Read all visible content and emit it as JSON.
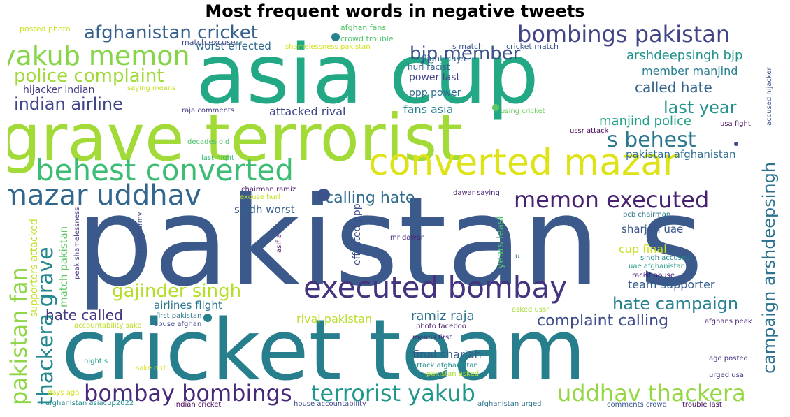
{
  "chart_data": {
    "type": "wordcloud",
    "title": "Most frequent words in negative tweets",
    "words": [
      {
        "text": "pakistan s",
        "color": "#3b5a8b"
      },
      {
        "text": "cricket team",
        "color": "#277f8e"
      },
      {
        "text": "asia cup",
        "color": "#22a884"
      },
      {
        "text": "grave terrorist",
        "color": "#a2da37"
      },
      {
        "text": "converted mazar",
        "color": "#dee318"
      },
      {
        "text": "behest converted",
        "color": "#3dbc74"
      },
      {
        "text": "executed bombay",
        "color": "#46337e"
      },
      {
        "text": "mazar uddhav",
        "color": "#31668e"
      },
      {
        "text": "yakub memon",
        "color": "#86d549"
      },
      {
        "text": "bombay bombings",
        "color": "#482878"
      },
      {
        "text": "terrorist yakub",
        "color": "#1f978b"
      },
      {
        "text": "uddhav thackera",
        "color": "#93d741"
      },
      {
        "text": "memon executed",
        "color": "#482173"
      },
      {
        "text": "bombings pakistan",
        "color": "#414487"
      },
      {
        "text": "s behest",
        "color": "#2a788e"
      },
      {
        "text": "afghanistan cricket",
        "color": "#35608d"
      },
      {
        "text": "gajinder singh",
        "color": "#b5de2b"
      },
      {
        "text": "pakistan fan",
        "color": "#8ed645"
      },
      {
        "text": "thackera grave",
        "color": "#23898e"
      },
      {
        "text": "police complaint",
        "color": "#9fda3a"
      },
      {
        "text": "bjp member",
        "color": "#3b528b"
      },
      {
        "text": "last year",
        "color": "#21918c"
      },
      {
        "text": "indian airline",
        "color": "#404688"
      },
      {
        "text": "hate campaign",
        "color": "#26818e"
      },
      {
        "text": "campaign arshdeepsingh",
        "color": "#2c728e"
      },
      {
        "text": "calling hate",
        "color": "#2f6c8e"
      },
      {
        "text": "complaint calling",
        "color": "#3e4c8a"
      },
      {
        "text": "arshdeepsingh bjp",
        "color": "#20928c"
      },
      {
        "text": "called hate",
        "color": "#33638d"
      },
      {
        "text": "manjind police",
        "color": "#1fa187"
      },
      {
        "text": "hate called",
        "color": "#443983"
      },
      {
        "text": "member manjind",
        "color": "#287d8e"
      },
      {
        "text": "ramiz raja",
        "color": "#2d708e"
      },
      {
        "text": "rival pakistan",
        "color": "#b8de29"
      },
      {
        "text": "final sharjah",
        "color": "#38598c"
      },
      {
        "text": "match pakistan",
        "color": "#5ec962"
      },
      {
        "text": "team supporter",
        "color": "#365c8d"
      },
      {
        "text": "attacked rival",
        "color": "#3f4788"
      },
      {
        "text": "fans asia",
        "color": "#26828e"
      },
      {
        "text": "cup final",
        "color": "#c8e020"
      },
      {
        "text": "pakistan afghanistan",
        "color": "#2e6e8e"
      },
      {
        "text": "airlines flight",
        "color": "#2a768e"
      },
      {
        "text": "sharjah uae",
        "color": "#39558c"
      },
      {
        "text": "worst effected",
        "color": "#306a8e"
      },
      {
        "text": "sindh worst",
        "color": "#355f8d"
      },
      {
        "text": "hijacker indian",
        "color": "#433e85"
      },
      {
        "text": "effected ppp",
        "color": "#3d4e8a"
      },
      {
        "text": "years least",
        "color": "#4ac16d"
      },
      {
        "text": "supporters attacked",
        "color": "#c0df25"
      },
      {
        "text": "power last",
        "color": "#414287"
      },
      {
        "text": "ppp power",
        "color": "#2e6f8e"
      },
      {
        "text": "flight days",
        "color": "#31678e"
      },
      {
        "text": "hurl racist",
        "color": "#34618d"
      },
      {
        "text": "s match",
        "color": "#3a548c"
      },
      {
        "text": "cricket match",
        "color": "#39568c"
      },
      {
        "text": "match excuse",
        "color": "#3e4a89"
      },
      {
        "text": "posted photo",
        "color": "#cde11d"
      },
      {
        "text": "crowd trouble",
        "color": "#50c46a"
      },
      {
        "text": "afghan fans",
        "color": "#56c667"
      },
      {
        "text": "shamelessness pakistan",
        "color": "#d5e21a"
      },
      {
        "text": "saying means",
        "color": "#c2df23"
      },
      {
        "text": "raja comments",
        "color": "#453882"
      },
      {
        "text": "using cricket",
        "color": "#6ccd5a"
      },
      {
        "text": "ussr attack",
        "color": "#440154"
      },
      {
        "text": "usa fight",
        "color": "#470e61"
      },
      {
        "text": "accused hijacker",
        "color": "#3b518b"
      },
      {
        "text": "decades old",
        "color": "#4cc26c"
      },
      {
        "text": "last night",
        "color": "#3aba76"
      },
      {
        "text": "chairman ramiz",
        "color": "#481668"
      },
      {
        "text": "excuse hurl",
        "color": "#c0df25"
      },
      {
        "text": "dawar saying",
        "color": "#482374"
      },
      {
        "text": "pcb chairman",
        "color": "#2b748e"
      },
      {
        "text": "peak shamelessness",
        "color": "#46327e"
      },
      {
        "text": "pakistan army",
        "color": "#3c4f8a"
      },
      {
        "text": "asif ali",
        "color": "#481a6c"
      },
      {
        "text": "mr dawar",
        "color": "#482475"
      },
      {
        "text": "u",
        "color": "#2d718e"
      },
      {
        "text": "singh accused",
        "color": "#24868e"
      },
      {
        "text": "uae afghanistan",
        "color": "#1e9b8a"
      },
      {
        "text": "racist abuse",
        "color": "#3b0f70"
      },
      {
        "text": "asked ussr",
        "color": "#a5db36"
      },
      {
        "text": "first pakistan",
        "color": "#2a778e"
      },
      {
        "text": "abuse afghan",
        "color": "#3e4989"
      },
      {
        "text": "accountability sake",
        "color": "#bade28"
      },
      {
        "text": "photo faceboo",
        "color": "#471365"
      },
      {
        "text": "means first",
        "color": "#472a7a"
      },
      {
        "text": "afghans peak",
        "color": "#482071"
      },
      {
        "text": "night s",
        "color": "#1f9e89"
      },
      {
        "text": "sake ord",
        "color": "#d8e219"
      },
      {
        "text": "attack afghanistan",
        "color": "#21908d"
      },
      {
        "text": "pakistan asked",
        "color": "#b0dd2f"
      },
      {
        "text": "ago posted",
        "color": "#46307e"
      },
      {
        "text": "urged usa",
        "color": "#424086"
      },
      {
        "text": "days ago",
        "color": "#d2e21b"
      },
      {
        "text": "afghanistan asiacup2022",
        "color": "#23888e"
      },
      {
        "text": "indian cricket",
        "color": "#440256"
      },
      {
        "text": "house accountability",
        "color": "#3f4889"
      },
      {
        "text": "afghanistan urged",
        "color": "#2c738e"
      },
      {
        "text": "comments crowd",
        "color": "#38588c"
      },
      {
        "text": "trouble last",
        "color": "#440f58"
      }
    ]
  }
}
